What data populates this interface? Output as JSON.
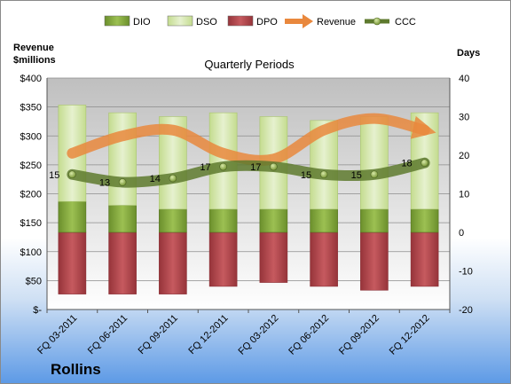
{
  "chart_data": {
    "type": "bar",
    "subtitle": "Quarterly Periods",
    "company": "Rollins",
    "ylabel_left": [
      "Revenue",
      "$millions"
    ],
    "ylabel_right": "Days",
    "categories": [
      "FQ 03-2011",
      "FQ 06-2011",
      "FQ 09-2011",
      "FQ 12-2011",
      "FQ 03-2012",
      "FQ 06-2012",
      "FQ 09-2012",
      "FQ 12-2012"
    ],
    "left_axis": {
      "min": 0,
      "max": 400,
      "step": 50,
      "ticks": [
        "$-",
        "$50",
        "$100",
        "$150",
        "$200",
        "$250",
        "$300",
        "$350",
        "$400"
      ]
    },
    "right_axis": {
      "min": -20,
      "max": 40,
      "step": 10,
      "ticks": [
        "-20",
        "-10",
        "0",
        "10",
        "20",
        "30",
        "40"
      ]
    },
    "series": [
      {
        "name": "DIO",
        "axis": "days",
        "color": "#7fa33a",
        "values": [
          8,
          7,
          6,
          6,
          6,
          6,
          6,
          6
        ]
      },
      {
        "name": "DSO",
        "axis": "days",
        "color": "#d7e8b0",
        "values": [
          25,
          24,
          24,
          25,
          24,
          23,
          24,
          25
        ]
      },
      {
        "name": "DPO",
        "axis": "days",
        "color": "#b0454a",
        "values": [
          -16,
          -16,
          -16,
          -14,
          -13,
          -14,
          -15,
          -14
        ]
      },
      {
        "name": "Revenue",
        "axis": "revenue",
        "color": "#e9883d",
        "values": [
          270,
          300,
          310,
          270,
          260,
          310,
          330,
          310
        ]
      },
      {
        "name": "CCC",
        "axis": "days",
        "color": "#5e7a2e",
        "values": [
          15,
          13,
          14,
          17,
          17,
          15,
          15,
          18
        ]
      }
    ],
    "ccc_labels": [
      "15",
      "13",
      "14",
      "17",
      "17",
      "15",
      "15",
      "18"
    ],
    "legend_position": "top",
    "grid": true
  }
}
